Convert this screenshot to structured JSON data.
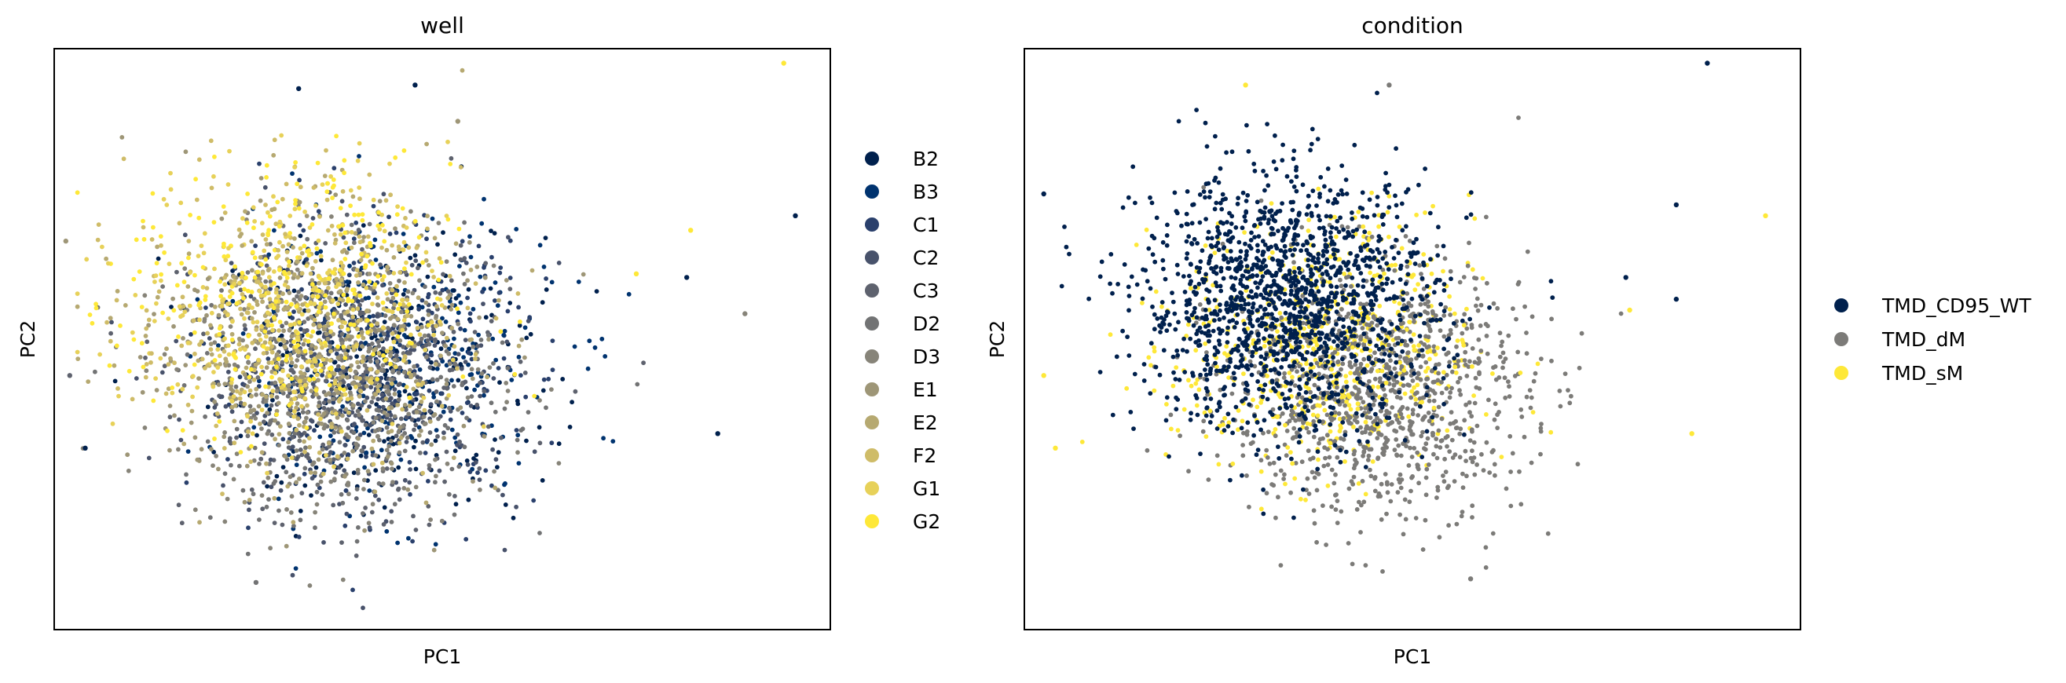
{
  "figure": {
    "background": "#ffffff"
  },
  "chart_data": [
    {
      "type": "scatter",
      "title": "well",
      "xlabel": "PC1",
      "ylabel": "PC2",
      "grid": false,
      "ticks": "none",
      "xlim": [
        -10,
        10
      ],
      "ylim": [
        -8,
        8
      ],
      "legend_placement": "right-outside",
      "colormap": "cividis",
      "categories": [
        "B2",
        "B3",
        "C1",
        "C2",
        "C3",
        "D2",
        "D3",
        "E1",
        "E2",
        "F2",
        "G1",
        "G2"
      ],
      "colors": [
        "#00204d",
        "#00336f",
        "#2a406c",
        "#48526b",
        "#5e626e",
        "#727374",
        "#878479",
        "#9e9677",
        "#b6a971",
        "#cfbc68",
        "#e7d159",
        "#fee838"
      ],
      "cloud_centers": [
        {
          "category": "B2",
          "x": -1.6,
          "y": -0.9
        },
        {
          "category": "B3",
          "x": -1.3,
          "y": -0.6
        },
        {
          "category": "C1",
          "x": -1.6,
          "y": -0.6
        },
        {
          "category": "C2",
          "x": -2.2,
          "y": -1.2
        },
        {
          "category": "C3",
          "x": -2.3,
          "y": -1.3
        },
        {
          "category": "D2",
          "x": -2.5,
          "y": -1.4
        },
        {
          "category": "D3",
          "x": -2.7,
          "y": -1.2
        },
        {
          "category": "E1",
          "x": -3.3,
          "y": -0.5
        },
        {
          "category": "E2",
          "x": -3.5,
          "y": 0.2
        },
        {
          "category": "F2",
          "x": -3.8,
          "y": 0.6
        },
        {
          "category": "G1",
          "x": -3.9,
          "y": 0.9
        },
        {
          "category": "G2",
          "x": -4.0,
          "y": 1.0
        }
      ],
      "outliers": [
        {
          "x": 8.8,
          "y": 7.6,
          "category": "G2"
        },
        {
          "x": 9.1,
          "y": 3.4,
          "category": "B2"
        },
        {
          "x": -3.7,
          "y": 6.9,
          "category": "B2"
        },
        {
          "x": -0.7,
          "y": 7.0,
          "category": "B2"
        },
        {
          "x": -9.2,
          "y": -3.0,
          "category": "B2"
        },
        {
          "x": 7.1,
          "y": -2.6,
          "category": "B2"
        },
        {
          "x": -4.8,
          "y": -6.7,
          "category": "D2"
        },
        {
          "x": -9.6,
          "y": -1.0,
          "category": "C3"
        },
        {
          "x": -9.7,
          "y": 2.7,
          "category": "E1"
        },
        {
          "x": 6.3,
          "y": 1.7,
          "category": "B2"
        },
        {
          "x": 5.0,
          "y": 1.8,
          "category": "G2"
        },
        {
          "x": 6.4,
          "y": 3.0,
          "category": "G2"
        },
        {
          "x": 7.8,
          "y": 0.7,
          "category": "D3"
        },
        {
          "x": 0.4,
          "y": 6.0,
          "category": "E1"
        }
      ]
    },
    {
      "type": "scatter",
      "title": "condition",
      "xlabel": "PC1",
      "ylabel": "PC2",
      "grid": false,
      "ticks": "none",
      "xlim": [
        -10,
        10
      ],
      "ylim": [
        -8,
        8
      ],
      "legend_placement": "right-outside",
      "categories": [
        "TMD_CD95_WT",
        "TMD_dM",
        "TMD_sM"
      ],
      "colors": [
        "#00204d",
        "#7c7b78",
        "#fee838"
      ],
      "cloud_centers": [
        {
          "category": "TMD_CD95_WT",
          "x": -3.2,
          "y": 1.0
        },
        {
          "category": "TMD_dM",
          "x": -0.9,
          "y": -1.4
        },
        {
          "category": "TMD_sM",
          "x": -2.2,
          "y": -0.2
        }
      ],
      "outliers": [
        {
          "x": 7.6,
          "y": 7.6,
          "category": "TMD_CD95_WT"
        },
        {
          "x": 9.1,
          "y": 3.4,
          "category": "TMD_sM"
        },
        {
          "x": -4.3,
          "y": 7.0,
          "category": "TMD_sM"
        },
        {
          "x": -0.6,
          "y": 7.0,
          "category": "TMD_dM"
        },
        {
          "x": -9.5,
          "y": 4.0,
          "category": "TMD_CD95_WT"
        },
        {
          "x": -9.5,
          "y": -1.0,
          "category": "TMD_sM"
        },
        {
          "x": -9.2,
          "y": -3.0,
          "category": "TMD_sM"
        },
        {
          "x": 7.2,
          "y": -2.6,
          "category": "TMD_sM"
        },
        {
          "x": 6.8,
          "y": 3.7,
          "category": "TMD_CD95_WT"
        },
        {
          "x": 5.5,
          "y": 1.7,
          "category": "TMD_CD95_WT"
        },
        {
          "x": 5.6,
          "y": 0.8,
          "category": "TMD_sM"
        },
        {
          "x": 6.8,
          "y": 1.1,
          "category": "TMD_CD95_WT"
        },
        {
          "x": 1.5,
          "y": -6.6,
          "category": "TMD_dM"
        }
      ]
    }
  ]
}
